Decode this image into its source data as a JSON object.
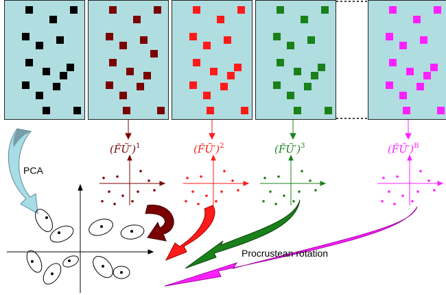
{
  "panels": [
    {
      "id": "data",
      "color": "#000000"
    },
    {
      "id": "b1",
      "color": "#7a0000"
    },
    {
      "id": "b2",
      "color": "#ff1a1a"
    },
    {
      "id": "b3",
      "color": "#1a801a"
    },
    {
      "id": "bB",
      "color": "#ff20ff"
    }
  ],
  "bootstrap_labels": [
    {
      "base": "(F̃Ũ′)",
      "sup": "1",
      "color": "#7a0000"
    },
    {
      "base": "(F̃Ũ′)",
      "sup": "2",
      "color": "#ff1a1a"
    },
    {
      "base": "(F̃Ũ′)",
      "sup": "3",
      "color": "#1a801a"
    },
    {
      "base": "(F̃Ũ′)",
      "sup": "B",
      "color": "#ff20ff"
    }
  ],
  "pca_label": "PCA",
  "procrustes_label": "Procrustean rotation"
}
